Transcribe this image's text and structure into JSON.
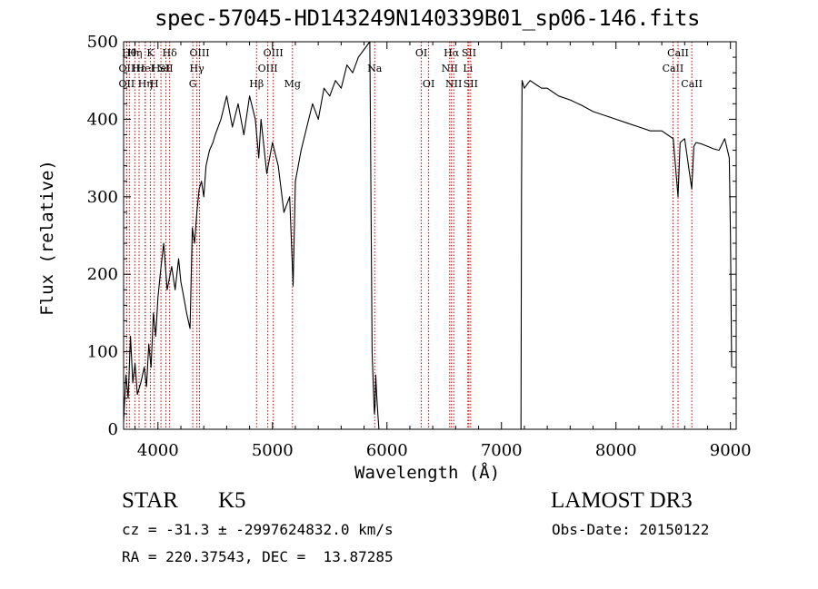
{
  "chart_data": {
    "type": "line",
    "title": "spec-57045-HD143249N140339B01_sp06-146.fits",
    "xlabel": "Wavelength (Å)",
    "ylabel": "Flux (relative)",
    "xlim": [
      3700,
      9050
    ],
    "ylim": [
      0,
      500
    ],
    "x_ticks": [
      4000,
      5000,
      6000,
      7000,
      8000,
      9000
    ],
    "y_ticks": [
      0,
      100,
      200,
      300,
      400,
      500
    ],
    "grid": false,
    "legend": "none",
    "series": [
      {
        "x": [
          3700,
          3720,
          3740,
          3760,
          3780,
          3800,
          3820,
          3850,
          3880,
          3900,
          3920,
          3940,
          3960,
          3980,
          4000,
          4020,
          4050,
          4080,
          4100,
          4120,
          4150,
          4180,
          4200,
          4220,
          4250,
          4280,
          4300,
          4320,
          4340,
          4360,
          4380,
          4400,
          4420,
          4450,
          4480,
          4500,
          4550,
          4600,
          4650,
          4700,
          4750,
          4800,
          4850,
          4880,
          4900,
          4950,
          5000,
          5050,
          5100,
          5150,
          5180,
          5200,
          5250,
          5300,
          5350,
          5400,
          5450,
          5500,
          5550,
          5600,
          5650,
          5700,
          5750,
          5800,
          5850,
          5870,
          5880,
          5890,
          5896,
          5902,
          5910,
          5920,
          5930,
          7170,
          7175,
          7180,
          7200,
          7250,
          7300,
          7350,
          7400,
          7450,
          7500,
          7600,
          7700,
          7800,
          7900,
          8000,
          8100,
          8200,
          8300,
          8400,
          8450,
          8500,
          8542,
          8560,
          8600,
          8662,
          8680,
          8700,
          8750,
          8800,
          8850,
          8900,
          8950,
          8990,
          9000,
          9010
        ],
        "y": [
          10,
          70,
          40,
          120,
          60,
          85,
          45,
          60,
          80,
          55,
          110,
          80,
          150,
          120,
          170,
          200,
          240,
          180,
          195,
          210,
          180,
          220,
          190,
          175,
          150,
          130,
          260,
          240,
          280,
          310,
          320,
          300,
          340,
          360,
          370,
          380,
          400,
          430,
          390,
          420,
          380,
          430,
          400,
          350,
          400,
          330,
          370,
          340,
          280,
          300,
          185,
          320,
          360,
          390,
          420,
          400,
          440,
          430,
          450,
          440,
          470,
          460,
          480,
          490,
          500,
          100,
          60,
          20,
          30,
          70,
          45,
          20,
          0,
          0,
          310,
          450,
          440,
          450,
          445,
          440,
          440,
          435,
          430,
          425,
          418,
          410,
          405,
          400,
          395,
          390,
          385,
          385,
          380,
          375,
          300,
          370,
          375,
          310,
          365,
          370,
          368,
          365,
          362,
          360,
          375,
          350,
          250,
          80
        ]
      }
    ],
    "line_markers": [
      {
        "x": 3750,
        "row": 1,
        "label": "Hθ"
      },
      {
        "x": 3727,
        "row": 2,
        "label": "OII"
      },
      {
        "x": 3727,
        "row": 3,
        "label": "OII"
      },
      {
        "x": 3798,
        "row": 1,
        "label": "Hη"
      },
      {
        "x": 3835,
        "row": 2,
        "label": "Hε"
      },
      {
        "x": 3889,
        "row": 2,
        "label": "HeI"
      },
      {
        "x": 3889,
        "row": 3,
        "label": "Hη"
      },
      {
        "x": 3934,
        "row": 1,
        "label": "K"
      },
      {
        "x": 3968,
        "row": 3,
        "label": "H"
      },
      {
        "x": 4026,
        "row": 2,
        "label": "HeI"
      },
      {
        "x": 4069,
        "row": 2,
        "label": "SII"
      },
      {
        "x": 4102,
        "row": 1,
        "label": "Hδ"
      },
      {
        "x": 4304,
        "row": 3,
        "label": "G"
      },
      {
        "x": 4340,
        "row": 2,
        "label": "Hγ"
      },
      {
        "x": 4363,
        "row": 1,
        "label": "OIII"
      },
      {
        "x": 4861,
        "row": 3,
        "label": "Hβ"
      },
      {
        "x": 4959,
        "row": 2,
        "label": "OIII"
      },
      {
        "x": 5007,
        "row": 1,
        "label": "OIII"
      },
      {
        "x": 5175,
        "row": 3,
        "label": "Mg"
      },
      {
        "x": 5893,
        "row": 2,
        "label": "Na"
      },
      {
        "x": 6300,
        "row": 1,
        "label": "OI"
      },
      {
        "x": 6364,
        "row": 3,
        "label": "OI"
      },
      {
        "x": 6548,
        "row": 2,
        "label": "NII"
      },
      {
        "x": 6563,
        "row": 1,
        "label": "Hα"
      },
      {
        "x": 6583,
        "row": 3,
        "label": "NII"
      },
      {
        "x": 6707,
        "row": 2,
        "label": "Li"
      },
      {
        "x": 6716,
        "row": 1,
        "label": "SII"
      },
      {
        "x": 6731,
        "row": 3,
        "label": "SII"
      },
      {
        "x": 8498,
        "row": 2,
        "label": "CaII"
      },
      {
        "x": 8542,
        "row": 1,
        "label": "CaII"
      },
      {
        "x": 8662,
        "row": 3,
        "label": "CaII"
      }
    ]
  },
  "info": {
    "class_label": "STAR",
    "subclass": "K5",
    "survey": "LAMOST DR3",
    "cz": "cz = -31.3 ± -2997624832.0 km/s",
    "obs_date": "Obs-Date: 20150122",
    "coords": "RA = 220.37543, DEC =  13.87285"
  },
  "colors": {
    "spectrum": "#000000",
    "marker_line": "#cc0000",
    "axes": "#000000",
    "background": "#ffffff"
  }
}
